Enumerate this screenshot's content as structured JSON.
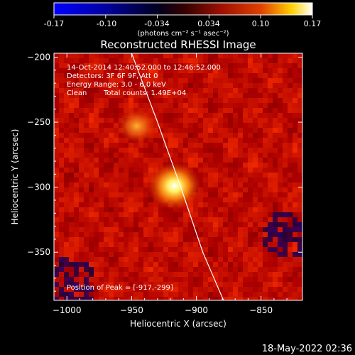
{
  "chart_data": {
    "type": "heatmap",
    "title": "Reconstructed RHESSI Image",
    "xlabel": "Heliocentric X (arcsec)",
    "ylabel": "Heliocentric Y (arcsec)",
    "xlim": [
      -1010,
      -818
    ],
    "ylim": [
      -387,
      -197
    ],
    "xticks": [
      -1000,
      -950,
      -900,
      -850
    ],
    "yticks": [
      -350,
      -300,
      -250,
      -200
    ],
    "colorbar": {
      "ticks": [
        "-0.17",
        "-0.10",
        "-0.034",
        "0.034",
        "0.10",
        "0.17"
      ],
      "range": [
        -0.17,
        0.17
      ],
      "unit": "(photons cm⁻² s⁻¹ asec⁻²)"
    },
    "annotations": {
      "time_range": "14-Oct-2014 12:40:52.000 to 12:46:52.000",
      "detectors": "Detectors: 3F 6F 9F, Att 0",
      "energy": "Energy Range: 3.0 - 6.0 keV",
      "method": "Clean",
      "counts": "Total counts: 1.49E+04",
      "peak": "Position of Peak = [-917,-299]"
    },
    "sources": [
      {
        "x": -917,
        "y": -299,
        "intensity": 0.17
      },
      {
        "x": -946,
        "y": -253,
        "intensity": 0.11
      }
    ],
    "limb_curve": [
      [
        -950,
        -197
      ],
      [
        -930,
        -250
      ],
      [
        -912,
        -300
      ],
      [
        -895,
        -350
      ],
      [
        -879,
        -387
      ]
    ],
    "colormap": "rhessi-blue-black-red-yellow-white"
  },
  "footer": {
    "timestamp": "18-May-2022 02:36"
  }
}
